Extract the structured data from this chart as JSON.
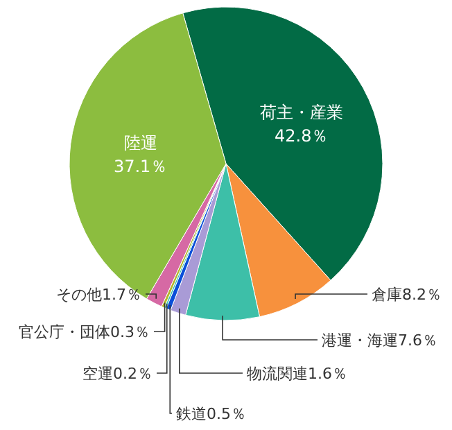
{
  "chart_data": {
    "type": "pie",
    "categories": [
      "荷主・産業",
      "倉庫",
      "港運・海運",
      "物流関連",
      "鉄道",
      "空運",
      "官公庁・団体",
      "その他",
      "陸運"
    ],
    "values": [
      42.8,
      8.2,
      7.6,
      1.6,
      0.5,
      0.2,
      0.3,
      1.7,
      37.1
    ],
    "colors": [
      "#026b45",
      "#f7913d",
      "#3dbfa8",
      "#a99bd6",
      "#0a4fd9",
      "#3cc4b0",
      "#b5b52a",
      "#d669a4",
      "#8cbd3f"
    ],
    "value_labels": [
      "42.8％",
      "8.2％",
      "7.6％",
      "1.6％",
      "0.5％",
      "0.2％",
      "0.3％",
      "1.7％",
      "37.1％"
    ]
  }
}
